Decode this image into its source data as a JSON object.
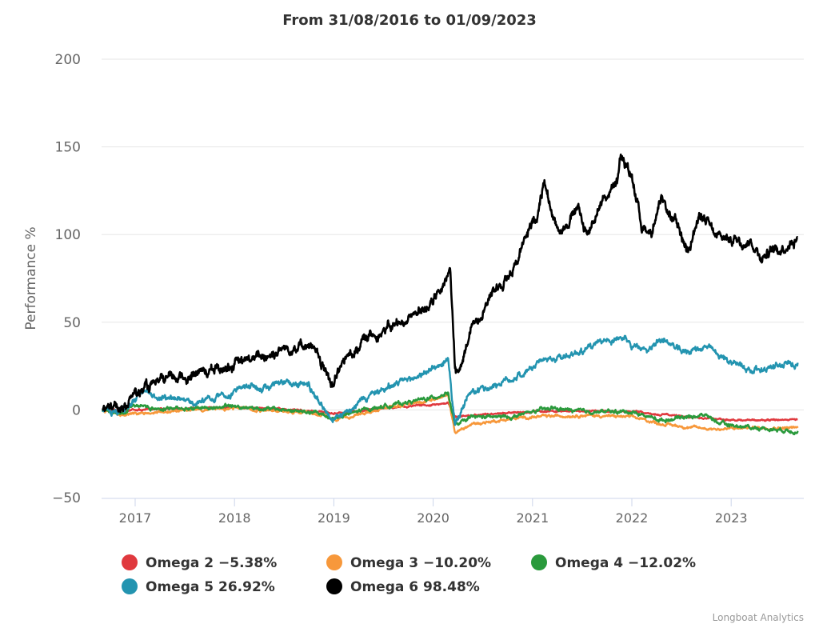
{
  "chart_data": {
    "type": "line",
    "title": "From 31/08/2016 to 01/09/2023",
    "xlabel": "",
    "ylabel": "Performance %",
    "ylim": [
      -50,
      200
    ],
    "yticks": [
      200,
      150,
      100,
      50,
      0,
      -50
    ],
    "yticklabels": [
      "200",
      "150",
      "100",
      "50",
      "0",
      "−50"
    ],
    "xlim": [
      "2016-08-31",
      "2023-09-01"
    ],
    "xticks": [
      "2017",
      "2018",
      "2019",
      "2020",
      "2021",
      "2022",
      "2023"
    ],
    "grid": true,
    "legend_position": "bottom",
    "credits": "Longboat Analytics",
    "series": [
      {
        "name": "Omega 2",
        "legend_label": "Omega 2 −5.38%",
        "final_return": -5.38,
        "color": "#e0393e",
        "noise": 0.3,
        "points": [
          [
            2016.67,
            0
          ],
          [
            2016.9,
            -0.5
          ],
          [
            2017.2,
            0.5
          ],
          [
            2017.6,
            1
          ],
          [
            2018.0,
            1.5
          ],
          [
            2018.5,
            0.5
          ],
          [
            2018.9,
            -1
          ],
          [
            2019.0,
            -2
          ],
          [
            2019.5,
            1
          ],
          [
            2020.0,
            3
          ],
          [
            2020.15,
            4
          ],
          [
            2020.22,
            -4
          ],
          [
            2020.4,
            -3
          ],
          [
            2020.8,
            -1.5
          ],
          [
            2021.0,
            -1
          ],
          [
            2021.5,
            -0.5
          ],
          [
            2022.0,
            -1
          ],
          [
            2022.4,
            -3
          ],
          [
            2022.8,
            -5
          ],
          [
            2023.2,
            -6
          ],
          [
            2023.67,
            -5.38
          ]
        ]
      },
      {
        "name": "Omega 3",
        "legend_label": "Omega 3 −10.20%",
        "final_return": -10.2,
        "color": "#f7983b",
        "noise": 0.5,
        "points": [
          [
            2016.67,
            0
          ],
          [
            2016.85,
            -2.5
          ],
          [
            2017.2,
            -1.5
          ],
          [
            2017.6,
            0
          ],
          [
            2018.0,
            1
          ],
          [
            2018.5,
            -1
          ],
          [
            2018.9,
            -3
          ],
          [
            2019.0,
            -6
          ],
          [
            2019.5,
            1
          ],
          [
            2020.0,
            6
          ],
          [
            2020.15,
            8
          ],
          [
            2020.22,
            -13
          ],
          [
            2020.4,
            -8
          ],
          [
            2020.8,
            -5
          ],
          [
            2021.0,
            -4
          ],
          [
            2021.5,
            -3
          ],
          [
            2022.0,
            -4
          ],
          [
            2022.3,
            -8
          ],
          [
            2022.6,
            -10
          ],
          [
            2022.9,
            -11
          ],
          [
            2023.2,
            -10
          ],
          [
            2023.67,
            -10.2
          ]
        ]
      },
      {
        "name": "Omega 4",
        "legend_label": "Omega 4 −12.02%",
        "final_return": -12.02,
        "color": "#2a9a3c",
        "noise": 0.7,
        "points": [
          [
            2016.67,
            0
          ],
          [
            2016.85,
            -1.5
          ],
          [
            2017.0,
            3
          ],
          [
            2017.2,
            1
          ],
          [
            2017.6,
            1
          ],
          [
            2018.0,
            2
          ],
          [
            2018.5,
            0
          ],
          [
            2018.85,
            -2
          ],
          [
            2019.0,
            -5
          ],
          [
            2019.3,
            0
          ],
          [
            2019.6,
            3
          ],
          [
            2020.0,
            7
          ],
          [
            2020.15,
            10
          ],
          [
            2020.22,
            -9
          ],
          [
            2020.4,
            -4
          ],
          [
            2020.8,
            -4
          ],
          [
            2021.0,
            -1
          ],
          [
            2021.2,
            1
          ],
          [
            2021.5,
            -1
          ],
          [
            2022.0,
            -1
          ],
          [
            2022.3,
            -6
          ],
          [
            2022.5,
            -4
          ],
          [
            2022.75,
            -3
          ],
          [
            2022.9,
            -8
          ],
          [
            2023.2,
            -10
          ],
          [
            2023.67,
            -12.02
          ]
        ]
      },
      {
        "name": "Omega 5",
        "legend_label": "Omega 5 26.92%",
        "final_return": 26.92,
        "color": "#2394b0",
        "noise": 1.2,
        "points": [
          [
            2016.67,
            0
          ],
          [
            2016.85,
            -2
          ],
          [
            2017.05,
            10
          ],
          [
            2017.3,
            7
          ],
          [
            2017.6,
            4
          ],
          [
            2018.0,
            10
          ],
          [
            2018.15,
            14
          ],
          [
            2018.3,
            12
          ],
          [
            2018.6,
            16
          ],
          [
            2018.75,
            14
          ],
          [
            2018.85,
            5
          ],
          [
            2019.0,
            -6
          ],
          [
            2019.2,
            3
          ],
          [
            2019.5,
            12
          ],
          [
            2019.8,
            18
          ],
          [
            2020.15,
            28
          ],
          [
            2020.22,
            -9
          ],
          [
            2020.35,
            8
          ],
          [
            2020.6,
            14
          ],
          [
            2020.9,
            20
          ],
          [
            2021.1,
            28
          ],
          [
            2021.3,
            30
          ],
          [
            2021.5,
            34
          ],
          [
            2021.7,
            38
          ],
          [
            2021.88,
            42
          ],
          [
            2022.0,
            36
          ],
          [
            2022.15,
            34
          ],
          [
            2022.3,
            41
          ],
          [
            2022.5,
            33
          ],
          [
            2022.75,
            36
          ],
          [
            2022.9,
            30
          ],
          [
            2023.2,
            23
          ],
          [
            2023.4,
            24
          ],
          [
            2023.67,
            26.92
          ]
        ]
      },
      {
        "name": "Omega 6",
        "legend_label": "Omega 6 98.48%",
        "final_return": 98.48,
        "color": "#000000",
        "noise": 2.0,
        "points": [
          [
            2016.67,
            0
          ],
          [
            2016.85,
            2
          ],
          [
            2017.1,
            12
          ],
          [
            2017.4,
            18
          ],
          [
            2017.7,
            22
          ],
          [
            2018.0,
            26
          ],
          [
            2018.25,
            30
          ],
          [
            2018.55,
            36
          ],
          [
            2018.75,
            38
          ],
          [
            2018.85,
            28
          ],
          [
            2019.0,
            14
          ],
          [
            2019.1,
            28
          ],
          [
            2019.3,
            40
          ],
          [
            2019.5,
            46
          ],
          [
            2019.7,
            50
          ],
          [
            2019.9,
            58
          ],
          [
            2020.1,
            68
          ],
          [
            2020.17,
            80
          ],
          [
            2020.22,
            25
          ],
          [
            2020.25,
            20
          ],
          [
            2020.4,
            48
          ],
          [
            2020.6,
            68
          ],
          [
            2020.8,
            80
          ],
          [
            2020.95,
            100
          ],
          [
            2021.05,
            112
          ],
          [
            2021.12,
            133
          ],
          [
            2021.2,
            110
          ],
          [
            2021.3,
            103
          ],
          [
            2021.45,
            115
          ],
          [
            2021.55,
            100
          ],
          [
            2021.7,
            120
          ],
          [
            2021.85,
            128
          ],
          [
            2021.88,
            143
          ],
          [
            2022.0,
            134
          ],
          [
            2022.1,
            105
          ],
          [
            2022.2,
            102
          ],
          [
            2022.3,
            118
          ],
          [
            2022.45,
            105
          ],
          [
            2022.55,
            92
          ],
          [
            2022.7,
            112
          ],
          [
            2022.85,
            98
          ],
          [
            2023.0,
            98
          ],
          [
            2023.2,
            96
          ],
          [
            2023.3,
            88
          ],
          [
            2023.5,
            92
          ],
          [
            2023.67,
            98.48
          ]
        ]
      }
    ]
  }
}
